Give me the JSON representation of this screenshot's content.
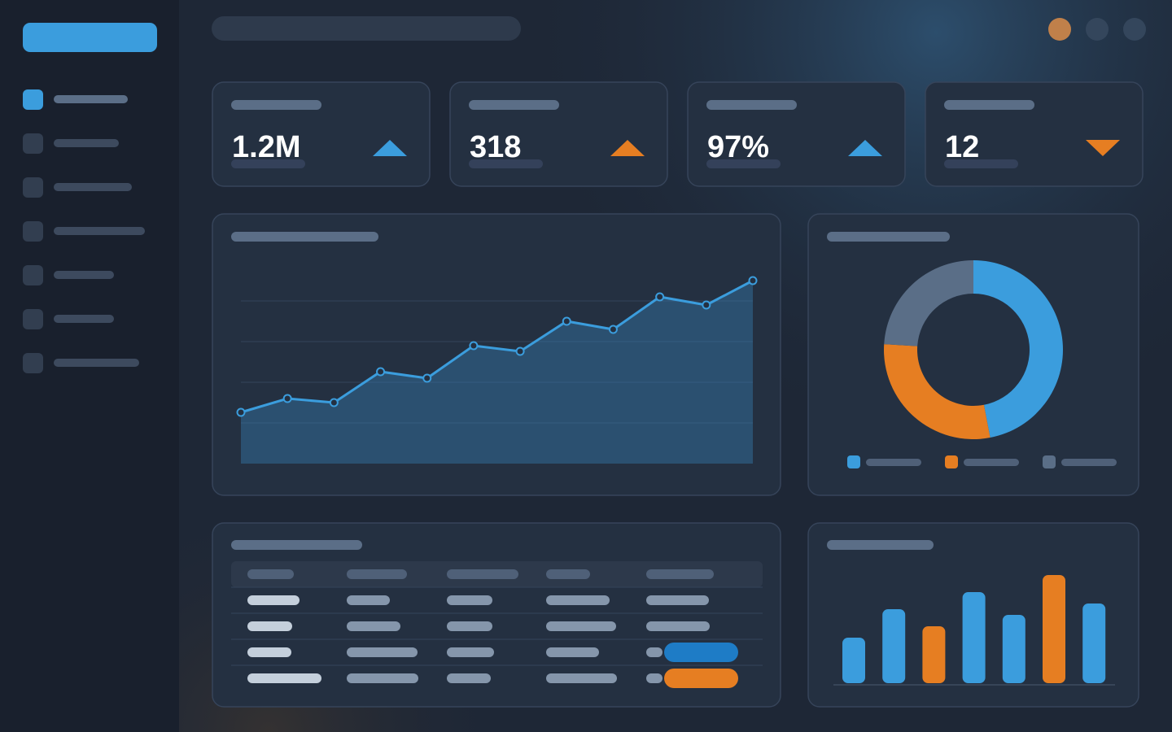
{
  "kpis": [
    {
      "value": "1.2M",
      "trend": "up",
      "color": "#3b9ddd"
    },
    {
      "value": "318",
      "trend": "up",
      "color": "#e67e22"
    },
    {
      "value": "97%",
      "trend": "up",
      "color": "#3b9ddd"
    },
    {
      "value": "12",
      "trend": "down",
      "color": "#e67e22"
    }
  ],
  "chart_data": [
    {
      "type": "area",
      "color": "#3b9ddd",
      "values": [
        1.26,
        1.6,
        1.5,
        2.26,
        2.1,
        2.9,
        2.76,
        3.5,
        3.3,
        4.1,
        3.9,
        4.5
      ],
      "ylim": [
        0,
        5
      ],
      "yticks": [
        1,
        2,
        3,
        4
      ],
      "grid": true
    },
    {
      "type": "donut",
      "values": [
        47,
        29,
        24
      ],
      "colors": [
        "#3b9ddd",
        "#e67e22",
        "#5a6e87"
      ],
      "legend": "bottom"
    },
    {
      "type": "bar",
      "values": [
        56,
        91,
        70,
        112,
        84,
        133,
        98
      ],
      "colors": [
        "#3b9ddd",
        "#3b9ddd",
        "#e67e22",
        "#3b9ddd",
        "#3b9ddd",
        "#e67e22",
        "#3b9ddd"
      ],
      "ylim": [
        0,
        140
      ]
    }
  ]
}
